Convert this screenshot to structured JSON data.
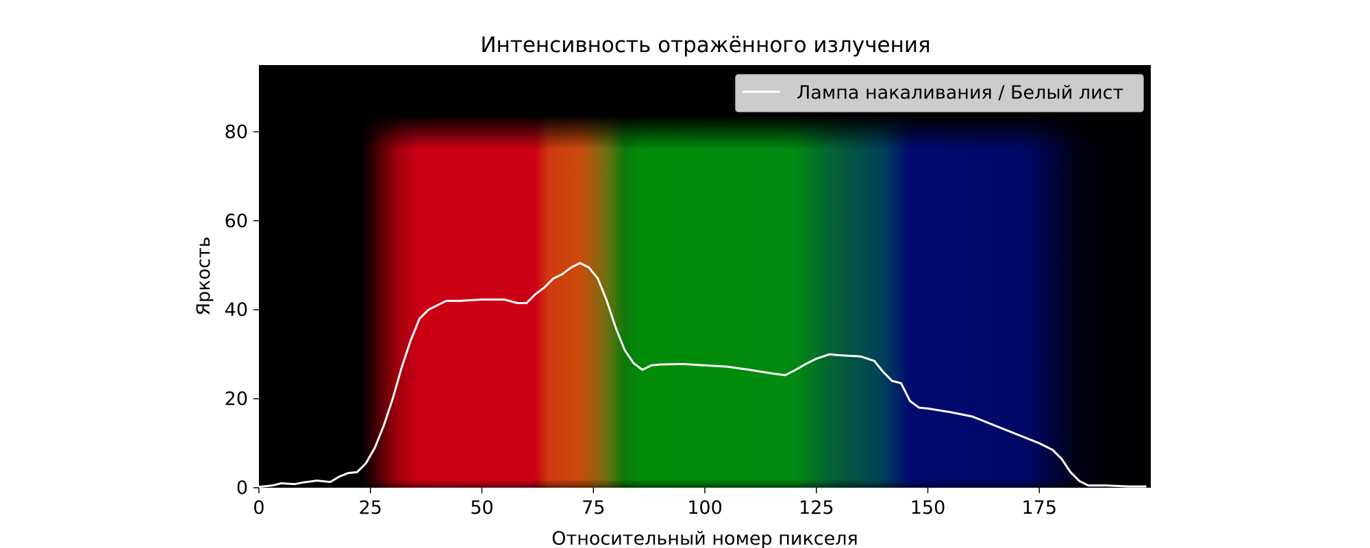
{
  "chart_data": {
    "type": "line",
    "title": "Интенсивность отражённого излучения",
    "xlabel": "Относительный номер пикселя",
    "ylabel": "Яркость",
    "xlim": [
      0,
      200
    ],
    "ylim": [
      0,
      95
    ],
    "xticks": [
      0,
      25,
      50,
      75,
      100,
      125,
      150,
      175
    ],
    "yticks": [
      0,
      20,
      40,
      60,
      80
    ],
    "legend_position": "top-right",
    "background": "spectrum image: black, red, orange, green, dark blue, black",
    "series": [
      {
        "name": "Лампа накаливания / Белый лист",
        "color": "#ffffff",
        "x": [
          0,
          3,
          5,
          8,
          10,
          13,
          16,
          18,
          20,
          22,
          24,
          26,
          28,
          30,
          32,
          34,
          36,
          38,
          40,
          42,
          45,
          50,
          55,
          58,
          60,
          62,
          64,
          66,
          68,
          70,
          72,
          74,
          76,
          78,
          80,
          82,
          84,
          86,
          88,
          90,
          95,
          100,
          105,
          110,
          115,
          118,
          120,
          123,
          125,
          128,
          130,
          135,
          138,
          140,
          142,
          144,
          146,
          148,
          150,
          155,
          160,
          165,
          170,
          175,
          178,
          180,
          182,
          184,
          186,
          190,
          195,
          199
        ],
        "y": [
          0.2,
          0.5,
          1,
          0.8,
          1.2,
          1.6,
          1.3,
          2.5,
          3.3,
          3.5,
          5.5,
          9,
          14,
          20,
          27,
          33,
          38,
          40,
          41,
          42,
          42,
          42.3,
          42.3,
          41.5,
          41.5,
          43.5,
          45,
          47,
          48,
          49.5,
          50.5,
          49.5,
          47,
          42,
          36,
          31,
          28,
          26.5,
          27.5,
          27.7,
          27.8,
          27.5,
          27.2,
          26.5,
          25.7,
          25.3,
          26.3,
          28,
          29,
          30,
          29.8,
          29.5,
          28.5,
          26,
          24,
          23.5,
          19.5,
          18,
          17.8,
          17,
          16,
          14,
          12,
          10,
          8.5,
          6.5,
          3.5,
          1.5,
          0.5,
          0.5,
          0.3,
          0.3
        ]
      }
    ]
  }
}
